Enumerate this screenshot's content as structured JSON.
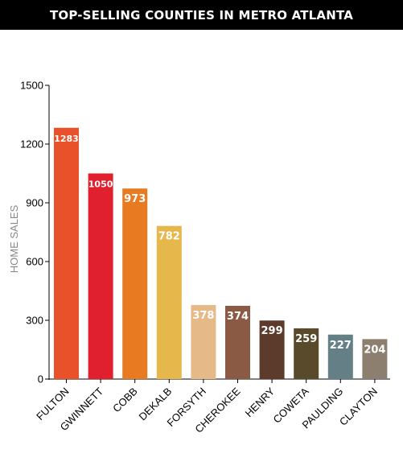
{
  "chart_data": {
    "type": "bar",
    "title": "TOP-SELLING COUNTIES IN METRO ATLANTA",
    "xlabel": "",
    "ylabel": "HOME SALES",
    "ylim": [
      0,
      1500
    ],
    "yticks": [
      0,
      300,
      600,
      900,
      1200,
      1500
    ],
    "grid": false,
    "categories": [
      "FULTON",
      "GWINNETT",
      "COBB",
      "DEKALB",
      "FORSYTH",
      "CHEROKEE",
      "HENRY",
      "COWETA",
      "PAULDING",
      "CLAYTON"
    ],
    "values": [
      1283,
      1050,
      973,
      782,
      378,
      374,
      299,
      259,
      227,
      204
    ],
    "colors": [
      "#e9512b",
      "#e0202e",
      "#e87a22",
      "#e6b84b",
      "#e6b988",
      "#8b5a45",
      "#5c3a2c",
      "#5a4a2c",
      "#657f87",
      "#8c7f6f"
    ]
  }
}
